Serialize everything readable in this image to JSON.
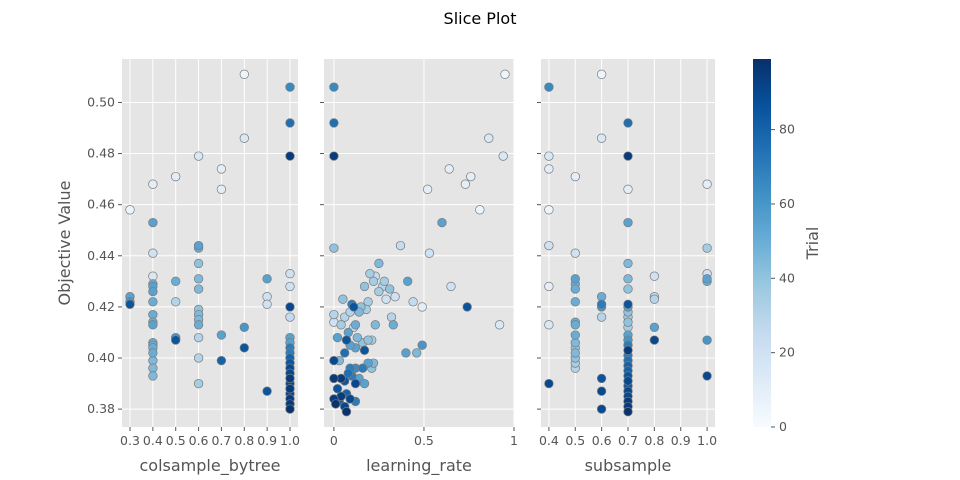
{
  "chart_data": {
    "type": "scatter",
    "title": "Slice Plot",
    "ylabel": "Objective Value",
    "ylim": [
      0.373,
      0.517
    ],
    "yticks": [
      "0.38",
      "0.40",
      "0.42",
      "0.44",
      "0.46",
      "0.48",
      "0.50"
    ],
    "colorbar": {
      "label": "Trial",
      "range": [
        0,
        99
      ],
      "ticks": [
        "0",
        "20",
        "40",
        "60",
        "80"
      ],
      "colormap": [
        "#f7fbff",
        "#deebf7",
        "#c6dbef",
        "#9ecae1",
        "#6baed6",
        "#4292c6",
        "#2171b5",
        "#08519c",
        "#08306b"
      ]
    },
    "panels": [
      {
        "xlabel": "colsample_bytree",
        "xlim": [
          0.265,
          1.035
        ],
        "xticks": [
          "0.3",
          "0.4",
          "0.5",
          "0.6",
          "0.7",
          "0.8",
          "0.9",
          "1.0"
        ],
        "points": [
          [
            0.3,
            0.458,
            5
          ],
          [
            0.3,
            0.424,
            55
          ],
          [
            0.3,
            0.422,
            60
          ],
          [
            0.3,
            0.421,
            85
          ],
          [
            0.4,
            0.468,
            10
          ],
          [
            0.4,
            0.453,
            55
          ],
          [
            0.4,
            0.441,
            20
          ],
          [
            0.4,
            0.432,
            15
          ],
          [
            0.4,
            0.429,
            50
          ],
          [
            0.4,
            0.428,
            55
          ],
          [
            0.4,
            0.426,
            55
          ],
          [
            0.4,
            0.422,
            50
          ],
          [
            0.4,
            0.417,
            50
          ],
          [
            0.4,
            0.414,
            50
          ],
          [
            0.4,
            0.413,
            55
          ],
          [
            0.4,
            0.406,
            50
          ],
          [
            0.4,
            0.405,
            50
          ],
          [
            0.4,
            0.404,
            50
          ],
          [
            0.4,
            0.402,
            50
          ],
          [
            0.4,
            0.399,
            45
          ],
          [
            0.4,
            0.396,
            45
          ],
          [
            0.4,
            0.393,
            45
          ],
          [
            0.5,
            0.471,
            10
          ],
          [
            0.5,
            0.43,
            50
          ],
          [
            0.5,
            0.422,
            30
          ],
          [
            0.5,
            0.408,
            60
          ],
          [
            0.5,
            0.407,
            85
          ],
          [
            0.6,
            0.479,
            15
          ],
          [
            0.6,
            0.444,
            55
          ],
          [
            0.6,
            0.443,
            50
          ],
          [
            0.6,
            0.437,
            40
          ],
          [
            0.6,
            0.431,
            45
          ],
          [
            0.6,
            0.427,
            45
          ],
          [
            0.6,
            0.419,
            40
          ],
          [
            0.6,
            0.417,
            45
          ],
          [
            0.6,
            0.415,
            45
          ],
          [
            0.6,
            0.413,
            50
          ],
          [
            0.6,
            0.408,
            30
          ],
          [
            0.6,
            0.4,
            30
          ],
          [
            0.6,
            0.39,
            35
          ],
          [
            0.7,
            0.474,
            10
          ],
          [
            0.7,
            0.466,
            10
          ],
          [
            0.7,
            0.409,
            55
          ],
          [
            0.7,
            0.399,
            80
          ],
          [
            0.8,
            0.511,
            5
          ],
          [
            0.8,
            0.486,
            15
          ],
          [
            0.8,
            0.412,
            60
          ],
          [
            0.8,
            0.404,
            85
          ],
          [
            0.9,
            0.431,
            55
          ],
          [
            0.9,
            0.424,
            20
          ],
          [
            0.9,
            0.421,
            20
          ],
          [
            0.9,
            0.387,
            85
          ],
          [
            1.0,
            0.506,
            65
          ],
          [
            1.0,
            0.492,
            75
          ],
          [
            1.0,
            0.479,
            95
          ],
          [
            1.0,
            0.433,
            20
          ],
          [
            1.0,
            0.428,
            20
          ],
          [
            1.0,
            0.42,
            90
          ],
          [
            1.0,
            0.416,
            25
          ],
          [
            1.0,
            0.408,
            55
          ],
          [
            1.0,
            0.406,
            55
          ],
          [
            1.0,
            0.404,
            70
          ],
          [
            1.0,
            0.402,
            70
          ],
          [
            1.0,
            0.4,
            80
          ],
          [
            1.0,
            0.398,
            85
          ],
          [
            1.0,
            0.396,
            90
          ],
          [
            1.0,
            0.394,
            90
          ],
          [
            1.0,
            0.392,
            95
          ],
          [
            1.0,
            0.39,
            90
          ],
          [
            1.0,
            0.388,
            95
          ],
          [
            1.0,
            0.386,
            90
          ],
          [
            1.0,
            0.384,
            95
          ],
          [
            1.0,
            0.382,
            95
          ],
          [
            1.0,
            0.38,
            98
          ]
        ]
      },
      {
        "xlabel": "learning_rate",
        "xlim": [
          -0.055,
          1.0
        ],
        "xticks": [
          "0",
          "0.5",
          "1"
        ],
        "points": [
          [
            0.0,
            0.506,
            65
          ],
          [
            0.0,
            0.492,
            75
          ],
          [
            0.0,
            0.479,
            95
          ],
          [
            0.0,
            0.443,
            40
          ],
          [
            0.95,
            0.511,
            5
          ],
          [
            0.86,
            0.486,
            15
          ],
          [
            0.94,
            0.479,
            15
          ],
          [
            0.76,
            0.471,
            10
          ],
          [
            0.64,
            0.474,
            10
          ],
          [
            0.73,
            0.468,
            10
          ],
          [
            0.52,
            0.466,
            10
          ],
          [
            0.81,
            0.458,
            5
          ],
          [
            0.6,
            0.453,
            55
          ],
          [
            0.53,
            0.441,
            20
          ],
          [
            0.37,
            0.444,
            25
          ],
          [
            0.65,
            0.428,
            20
          ],
          [
            0.92,
            0.413,
            15
          ],
          [
            0.49,
            0.42,
            10
          ],
          [
            0.44,
            0.422,
            25
          ],
          [
            0.74,
            0.42,
            85
          ],
          [
            0.49,
            0.405,
            60
          ],
          [
            0.41,
            0.43,
            55
          ],
          [
            0.4,
            0.402,
            55
          ],
          [
            0.46,
            0.402,
            45
          ],
          [
            0.25,
            0.437,
            45
          ],
          [
            0.2,
            0.433,
            35
          ],
          [
            0.23,
            0.432,
            25
          ],
          [
            0.22,
            0.43,
            35
          ],
          [
            0.28,
            0.43,
            35
          ],
          [
            0.27,
            0.428,
            30
          ],
          [
            0.31,
            0.427,
            40
          ],
          [
            0.25,
            0.426,
            35
          ],
          [
            0.17,
            0.428,
            40
          ],
          [
            0.34,
            0.424,
            20
          ],
          [
            0.29,
            0.423,
            20
          ],
          [
            0.19,
            0.422,
            35
          ],
          [
            0.15,
            0.42,
            40
          ],
          [
            0.05,
            0.423,
            40
          ],
          [
            0.1,
            0.421,
            70
          ],
          [
            0.11,
            0.42,
            85
          ],
          [
            0.18,
            0.419,
            35
          ],
          [
            0.14,
            0.418,
            45
          ],
          [
            0.0,
            0.417,
            30
          ],
          [
            0.06,
            0.416,
            30
          ],
          [
            0.09,
            0.418,
            30
          ],
          [
            0.32,
            0.416,
            30
          ],
          [
            0.33,
            0.413,
            50
          ],
          [
            0.23,
            0.413,
            45
          ],
          [
            0.12,
            0.413,
            50
          ],
          [
            0.0,
            0.414,
            20
          ],
          [
            0.04,
            0.413,
            35
          ],
          [
            0.11,
            0.412,
            25
          ],
          [
            0.08,
            0.41,
            55
          ],
          [
            0.02,
            0.408,
            55
          ],
          [
            0.07,
            0.407,
            85
          ],
          [
            0.13,
            0.408,
            45
          ],
          [
            0.16,
            0.406,
            40
          ],
          [
            0.19,
            0.407,
            40
          ],
          [
            0.21,
            0.407,
            35
          ],
          [
            0.12,
            0.404,
            55
          ],
          [
            0.17,
            0.403,
            85
          ],
          [
            0.09,
            0.405,
            55
          ],
          [
            0.06,
            0.402,
            75
          ],
          [
            0.03,
            0.399,
            45
          ],
          [
            0.0,
            0.399,
            90
          ],
          [
            0.19,
            0.398,
            55
          ],
          [
            0.22,
            0.398,
            45
          ],
          [
            0.16,
            0.396,
            70
          ],
          [
            0.21,
            0.396,
            40
          ],
          [
            0.12,
            0.396,
            65
          ],
          [
            0.09,
            0.396,
            70
          ],
          [
            0.04,
            0.392,
            95
          ],
          [
            0.0,
            0.392,
            95
          ],
          [
            0.08,
            0.394,
            75
          ],
          [
            0.1,
            0.393,
            70
          ],
          [
            0.14,
            0.392,
            55
          ],
          [
            0.17,
            0.39,
            55
          ],
          [
            0.12,
            0.39,
            90
          ],
          [
            0.06,
            0.391,
            85
          ],
          [
            0.02,
            0.388,
            85
          ],
          [
            0.07,
            0.386,
            80
          ],
          [
            0.04,
            0.385,
            95
          ],
          [
            0.0,
            0.384,
            95
          ],
          [
            0.01,
            0.382,
            98
          ],
          [
            0.09,
            0.384,
            90
          ],
          [
            0.06,
            0.381,
            90
          ],
          [
            0.07,
            0.379,
            98
          ],
          [
            0.12,
            0.383,
            70
          ],
          [
            0.03,
            0.383,
            80
          ]
        ]
      },
      {
        "xlabel": "subsample",
        "xlim": [
          0.37,
          1.03
        ],
        "xticks": [
          "0.4",
          "0.5",
          "0.6",
          "0.7",
          "0.8",
          "0.9",
          "1.0"
        ],
        "points": [
          [
            0.4,
            0.506,
            65
          ],
          [
            0.4,
            0.479,
            15
          ],
          [
            0.4,
            0.474,
            10
          ],
          [
            0.4,
            0.458,
            5
          ],
          [
            0.4,
            0.444,
            20
          ],
          [
            0.4,
            0.428,
            10
          ],
          [
            0.4,
            0.413,
            15
          ],
          [
            0.4,
            0.39,
            90
          ],
          [
            0.5,
            0.471,
            10
          ],
          [
            0.5,
            0.441,
            20
          ],
          [
            0.5,
            0.431,
            55
          ],
          [
            0.5,
            0.429,
            50
          ],
          [
            0.5,
            0.427,
            50
          ],
          [
            0.5,
            0.422,
            50
          ],
          [
            0.5,
            0.414,
            50
          ],
          [
            0.5,
            0.413,
            50
          ],
          [
            0.5,
            0.409,
            50
          ],
          [
            0.5,
            0.406,
            45
          ],
          [
            0.5,
            0.404,
            40
          ],
          [
            0.5,
            0.402,
            45
          ],
          [
            0.5,
            0.4,
            40
          ],
          [
            0.5,
            0.398,
            35
          ],
          [
            0.5,
            0.396,
            30
          ],
          [
            0.6,
            0.511,
            5
          ],
          [
            0.6,
            0.486,
            15
          ],
          [
            0.6,
            0.424,
            50
          ],
          [
            0.6,
            0.421,
            70
          ],
          [
            0.6,
            0.42,
            60
          ],
          [
            0.6,
            0.416,
            30
          ],
          [
            0.6,
            0.392,
            85
          ],
          [
            0.6,
            0.387,
            90
          ],
          [
            0.6,
            0.38,
            90
          ],
          [
            0.7,
            0.492,
            75
          ],
          [
            0.7,
            0.479,
            95
          ],
          [
            0.7,
            0.466,
            10
          ],
          [
            0.7,
            0.453,
            55
          ],
          [
            0.7,
            0.437,
            45
          ],
          [
            0.7,
            0.431,
            45
          ],
          [
            0.7,
            0.427,
            40
          ],
          [
            0.7,
            0.421,
            85
          ],
          [
            0.7,
            0.42,
            55
          ],
          [
            0.7,
            0.418,
            40
          ],
          [
            0.7,
            0.416,
            35
          ],
          [
            0.7,
            0.414,
            40
          ],
          [
            0.7,
            0.412,
            35
          ],
          [
            0.7,
            0.409,
            55
          ],
          [
            0.7,
            0.407,
            60
          ],
          [
            0.7,
            0.405,
            70
          ],
          [
            0.7,
            0.403,
            95
          ],
          [
            0.7,
            0.401,
            70
          ],
          [
            0.7,
            0.399,
            75
          ],
          [
            0.7,
            0.397,
            80
          ],
          [
            0.7,
            0.395,
            80
          ],
          [
            0.7,
            0.393,
            85
          ],
          [
            0.7,
            0.391,
            90
          ],
          [
            0.7,
            0.389,
            85
          ],
          [
            0.7,
            0.387,
            90
          ],
          [
            0.7,
            0.385,
            90
          ],
          [
            0.7,
            0.383,
            95
          ],
          [
            0.7,
            0.381,
            95
          ],
          [
            0.7,
            0.379,
            98
          ],
          [
            0.8,
            0.432,
            20
          ],
          [
            0.8,
            0.424,
            25
          ],
          [
            0.8,
            0.423,
            30
          ],
          [
            0.8,
            0.412,
            55
          ],
          [
            0.8,
            0.407,
            90
          ],
          [
            1.0,
            0.468,
            10
          ],
          [
            1.0,
            0.443,
            35
          ],
          [
            1.0,
            0.433,
            20
          ],
          [
            1.0,
            0.431,
            55
          ],
          [
            1.0,
            0.43,
            50
          ],
          [
            1.0,
            0.407,
            60
          ],
          [
            1.0,
            0.393,
            90
          ]
        ]
      }
    ]
  }
}
